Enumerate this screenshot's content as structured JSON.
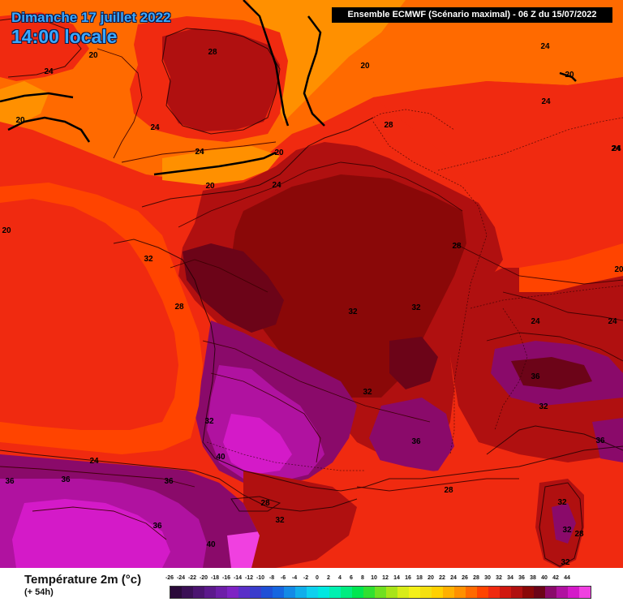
{
  "title": {
    "date": "Dimanche 17 juillet 2022",
    "time": "14:00 locale"
  },
  "model": "Ensemble ECMWF  (Scénario maximal) - 06 Z du 15/07/2022",
  "legend": {
    "title": "Température 2m (°c)",
    "subtitle": "(+ 54h)",
    "ticks": [
      "-26",
      "-24",
      "-22",
      "-20",
      "-18",
      "-16",
      "-14",
      "-12",
      "-10",
      "-8",
      "-6",
      "-4",
      "-2",
      "0",
      "2",
      "4",
      "6",
      "8",
      "10",
      "12",
      "14",
      "16",
      "18",
      "20",
      "22",
      "24",
      "26",
      "28",
      "30",
      "32",
      "34",
      "36",
      "38",
      "40",
      "42",
      "44"
    ],
    "colors": [
      "#2a0a3a",
      "#3a0f55",
      "#4b1470",
      "#5c198c",
      "#6d1ea8",
      "#7e23c4",
      "#5a2fc8",
      "#3a3ccc",
      "#1f4fd6",
      "#1666e0",
      "#138ae6",
      "#11aeea",
      "#0fd0ee",
      "#00e8e0",
      "#00f0b0",
      "#00ec80",
      "#00e650",
      "#30e030",
      "#70e020",
      "#a8e418",
      "#d8ec18",
      "#f4f018",
      "#f4e010",
      "#ffd000",
      "#ffb000",
      "#ff9000",
      "#ff6a00",
      "#ff4400",
      "#f02a10",
      "#d01810",
      "#b01010",
      "#8a0808",
      "#6c0418",
      "#8a0a6a",
      "#b012a0",
      "#d41ac8",
      "#f040e0"
    ]
  },
  "map_labels": [
    {
      "name": "label-20",
      "v": "20"
    },
    {
      "name": "label-28",
      "v": "28"
    },
    {
      "name": "label-24",
      "v": "24"
    },
    {
      "name": "label-20",
      "v": "20"
    },
    {
      "name": "label-24",
      "v": "24"
    },
    {
      "name": "label-20",
      "v": "20"
    },
    {
      "name": "label-24",
      "v": "24"
    },
    {
      "name": "label-20",
      "v": "20"
    },
    {
      "name": "label-24",
      "v": "24"
    },
    {
      "name": "label-24",
      "v": "24"
    },
    {
      "name": "label-28",
      "v": "28"
    },
    {
      "name": "label-24",
      "v": "24"
    },
    {
      "name": "label-24",
      "v": "24"
    },
    {
      "name": "label-24",
      "v": "24"
    },
    {
      "name": "label-24",
      "v": "24"
    },
    {
      "name": "label-20",
      "v": "20"
    },
    {
      "name": "label-20",
      "v": "20"
    },
    {
      "name": "label-20",
      "v": "20"
    },
    {
      "name": "label-28",
      "v": "28"
    },
    {
      "name": "label-32",
      "v": "32"
    },
    {
      "name": "label-20",
      "v": "20"
    },
    {
      "name": "label-28",
      "v": "28"
    },
    {
      "name": "label-32",
      "v": "32"
    },
    {
      "name": "label-32",
      "v": "32"
    },
    {
      "name": "label-24",
      "v": "24"
    },
    {
      "name": "label-24",
      "v": "24"
    },
    {
      "name": "label-36",
      "v": "36"
    },
    {
      "name": "label-32",
      "v": "32"
    },
    {
      "name": "label-32",
      "v": "32"
    },
    {
      "name": "label-32",
      "v": "32"
    },
    {
      "name": "label-36",
      "v": "36"
    },
    {
      "name": "label-36",
      "v": "36"
    },
    {
      "name": "label-40",
      "v": "40"
    },
    {
      "name": "label-24",
      "v": "24"
    },
    {
      "name": "label-36",
      "v": "36"
    },
    {
      "name": "label-36",
      "v": "36"
    },
    {
      "name": "label-36",
      "v": "36"
    },
    {
      "name": "label-28",
      "v": "28"
    },
    {
      "name": "label-28",
      "v": "28"
    },
    {
      "name": "label-32",
      "v": "32"
    },
    {
      "name": "label-32",
      "v": "32"
    },
    {
      "name": "label-36",
      "v": "36"
    },
    {
      "name": "label-32",
      "v": "32"
    },
    {
      "name": "label-28",
      "v": "28"
    },
    {
      "name": "label-40",
      "v": "40"
    },
    {
      "name": "label-32",
      "v": "32"
    }
  ]
}
